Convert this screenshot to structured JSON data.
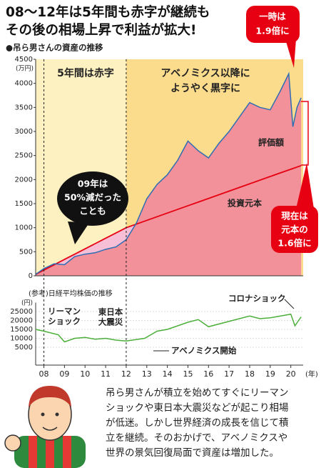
{
  "chart_data": [
    {
      "type": "line",
      "title": [
        "08〜12年は5年間も赤字が継続も",
        "その後の相場上昇で利益が拡大!"
      ],
      "subtitle": "●吊ら男さんの資産の推移",
      "y_unit": "(万円)",
      "xlim": [
        7.6,
        20.6
      ],
      "ylim": [
        0,
        4500
      ],
      "yticks": [
        0,
        500,
        1000,
        1500,
        2000,
        2500,
        3000,
        3500,
        4000,
        4500
      ],
      "periods": [
        {
          "label": [
            "5年間は赤字"
          ],
          "from": 8,
          "to": 12,
          "color": "#fdf1c2"
        },
        {
          "label": [
            "アベノミクス以降に",
            "ようやく黒字に"
          ],
          "from": 12,
          "to": 20.6,
          "color": "#fbdc8c"
        }
      ],
      "x": [
        7.6,
        8,
        8.5,
        9,
        9.5,
        10,
        10.5,
        11,
        11.5,
        12,
        12.5,
        13,
        13.5,
        14,
        14.5,
        15,
        15.5,
        16,
        16.5,
        17,
        17.5,
        18,
        18.5,
        19,
        19.5,
        19.9,
        20.1,
        20.3,
        20.5
      ],
      "series": [
        {
          "name": "評価額",
          "color": "#2e6db4",
          "fill": "#f2919a",
          "values": [
            30,
            150,
            250,
            230,
            400,
            450,
            480,
            550,
            600,
            750,
            1100,
            1600,
            1900,
            2100,
            2400,
            2800,
            2600,
            2450,
            2750,
            3000,
            3300,
            3600,
            3500,
            3450,
            3850,
            4200,
            3100,
            3500,
            3700
          ]
        },
        {
          "name": "投資元本",
          "color": "#e60012",
          "fill": "#f6bfd6",
          "values": [
            30,
            120,
            230,
            340,
            450,
            560,
            670,
            780,
            890,
            1000,
            1076,
            1152,
            1228,
            1304,
            1380,
            1456,
            1532,
            1608,
            1684,
            1760,
            1836,
            1912,
            1988,
            2064,
            2140,
            2200,
            2230,
            2260,
            2290
          ]
        }
      ],
      "annotations": [
        {
          "lines": [
            "09年は",
            "50%減だった",
            "ことも"
          ]
        },
        {
          "lines": [
            "一時は",
            "1.9倍に"
          ]
        },
        {
          "lines": [
            "現在は",
            "元本の",
            "1.6倍に"
          ]
        }
      ]
    },
    {
      "type": "line",
      "title": "(参考)日経平均株価の推移",
      "y_unit": "(円)",
      "x_unit": "(年)",
      "xlim": [
        7.6,
        20.6
      ],
      "ylim": [
        -5000,
        30000
      ],
      "yticks": [
        5000,
        10000,
        15000,
        20000,
        25000
      ],
      "xticks": [
        {
          "value": 8,
          "label": "08"
        },
        {
          "value": 9,
          "label": "09"
        },
        10,
        11,
        12,
        13,
        14,
        15,
        16,
        17,
        18,
        19,
        20
      ],
      "series": [
        {
          "color": "#4caf3a",
          "x": [
            7.6,
            8,
            8.7,
            9,
            9.5,
            10,
            10.5,
            11,
            11.5,
            12,
            12.9,
            13.5,
            14,
            15,
            15.5,
            16,
            17,
            18,
            18.5,
            19,
            20,
            20.2,
            20.5
          ],
          "values": [
            15000,
            14000,
            12000,
            8000,
            10000,
            10500,
            9500,
            10000,
            9000,
            8500,
            10000,
            14000,
            15000,
            19000,
            20500,
            16500,
            19500,
            22500,
            21000,
            21500,
            23500,
            17000,
            22000
          ]
        }
      ],
      "annotations": [
        {
          "lines": [
            "リーマン",
            "ショック"
          ]
        },
        {
          "lines": [
            "東日本",
            "大震災"
          ]
        },
        {
          "lines": [
            "アベノミクス開始"
          ]
        },
        {
          "lines": [
            "コロナショック"
          ]
        }
      ]
    }
  ],
  "text": [
    "吊ら男さんが積立を始めてすぐにリーマン",
    "ショックや東日本大震災などが起こり相場",
    "が低迷。しかし世界経済の成長を信じて積",
    "立を継続。そのおかげで、アベノミクスや",
    "世界の景気回復局面で資産は増加した。"
  ]
}
